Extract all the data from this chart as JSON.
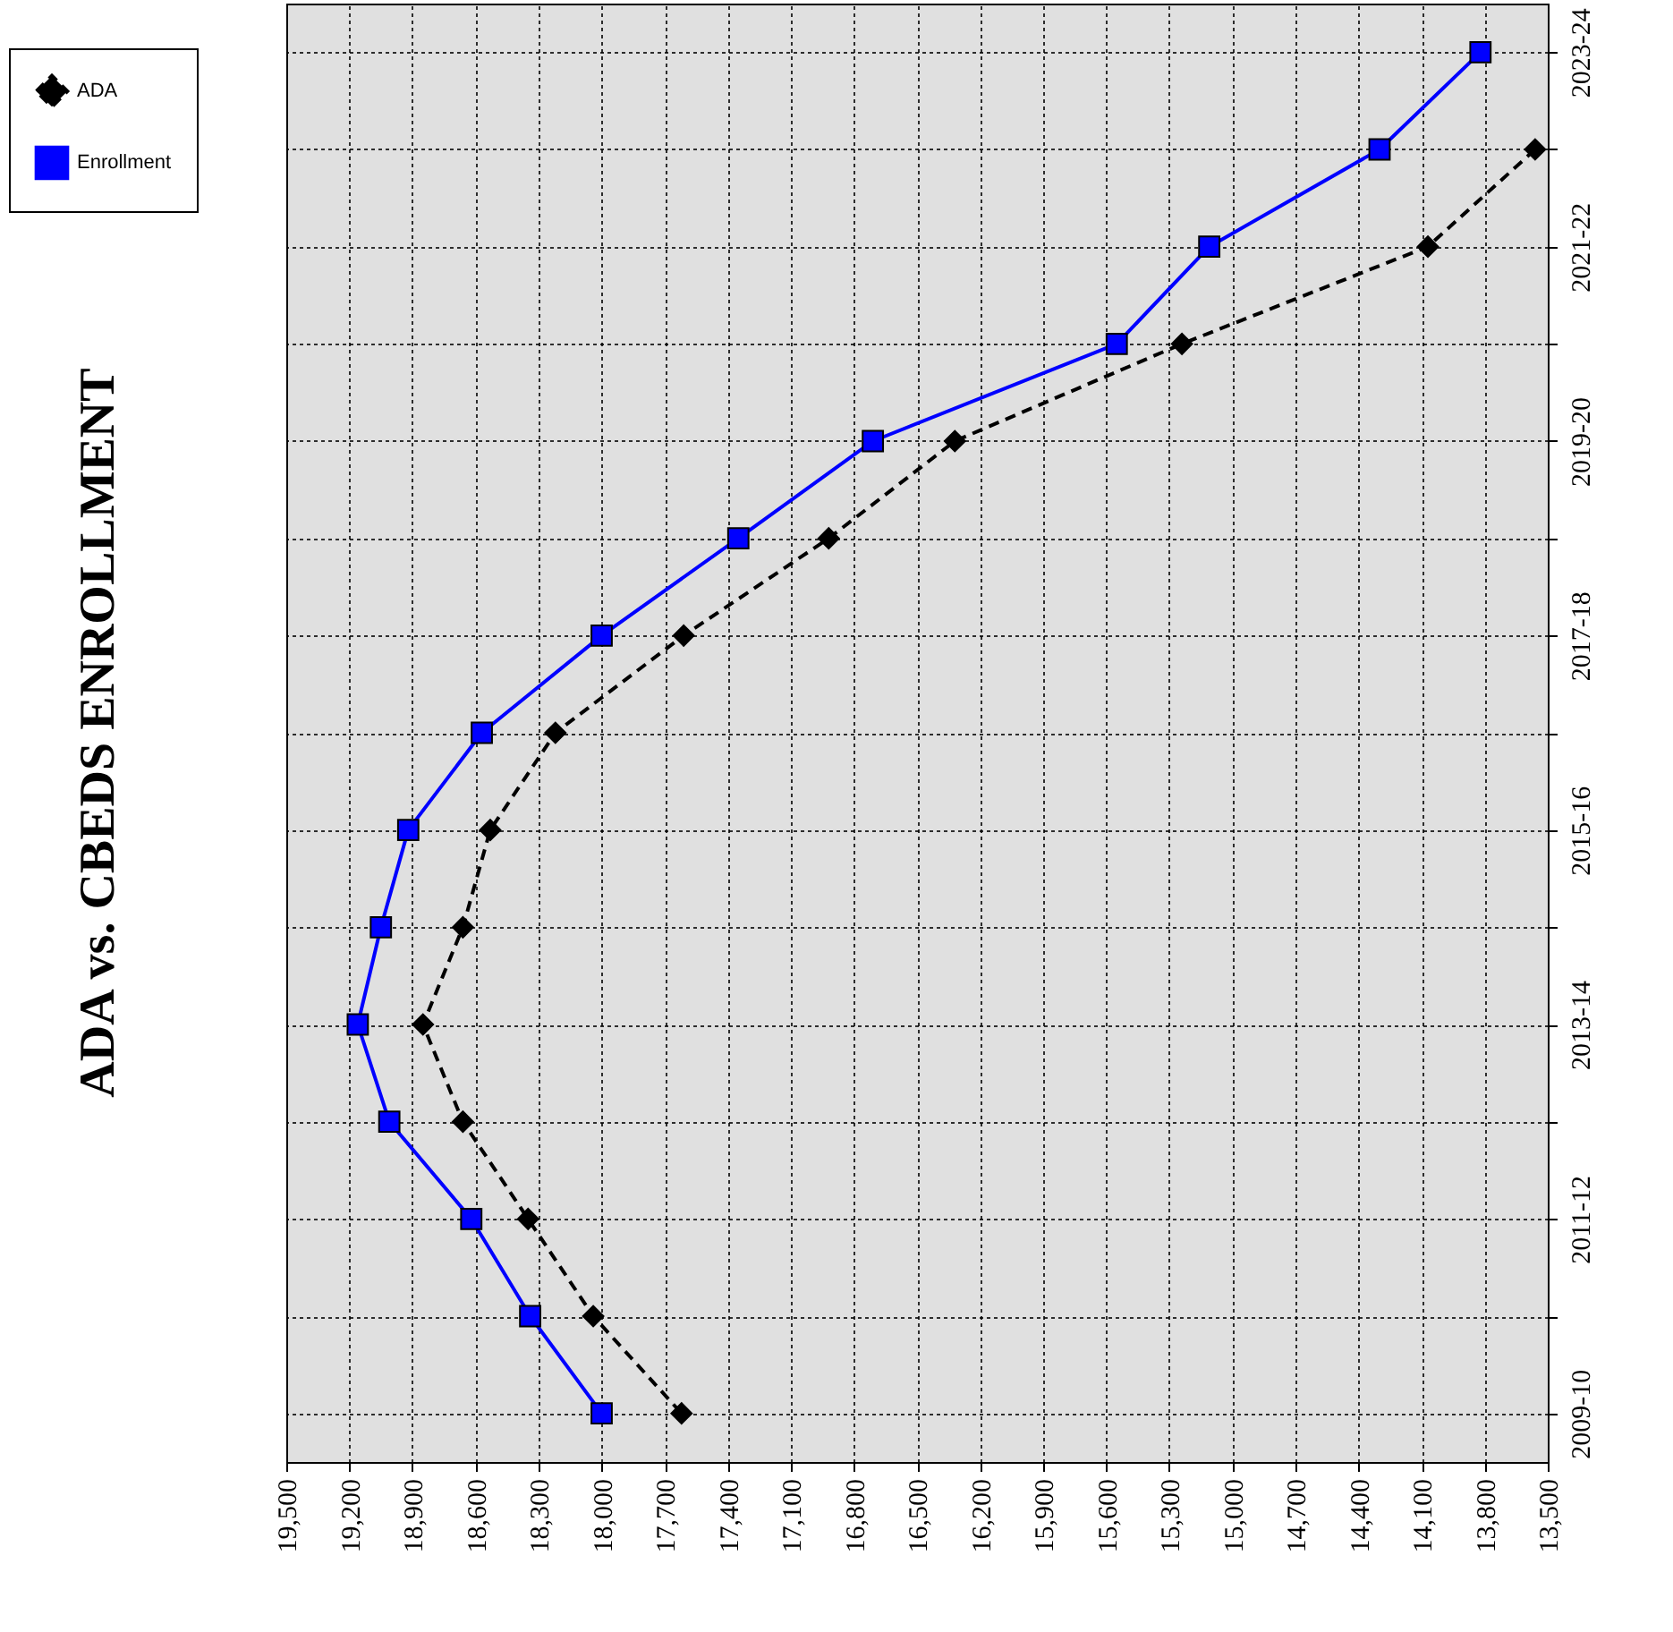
{
  "chart_data": {
    "type": "line",
    "title": "ADA vs. CBEDS ENROLLMENT",
    "orientation": "horizontal",
    "categories": [
      "2023-24",
      null,
      "2021-22",
      null,
      "2019-20",
      null,
      "2017-18",
      null,
      "2015-16",
      null,
      "2013-14",
      null,
      "2011-12",
      null,
      "2009-10"
    ],
    "series": [
      {
        "name": "ADA",
        "color": "#000000",
        "marker": "diamond",
        "line_style": "dashed",
        "values": [
          null,
          13560,
          14070,
          15240,
          16320,
          16920,
          17610,
          18220,
          18530,
          18660,
          18850,
          18660,
          18350,
          18040,
          17620
        ]
      },
      {
        "name": "Enrollment",
        "color": "#0000ff",
        "marker": "square",
        "line_style": "solid",
        "values": [
          13820,
          14300,
          15110,
          15550,
          16710,
          17350,
          18000,
          18570,
          18920,
          19050,
          19160,
          19010,
          18620,
          18340,
          18000
        ]
      }
    ],
    "xlim": [
      19500,
      13500
    ],
    "xticks": [
      {
        "value": 19500,
        "label": "19,500"
      },
      {
        "value": 19200,
        "label": "19,200"
      },
      {
        "value": 18900,
        "label": "18,900"
      },
      {
        "value": 18600,
        "label": "18,600"
      },
      {
        "value": 18300,
        "label": "18,300"
      },
      {
        "value": 18000,
        "label": "18,000"
      },
      {
        "value": 17700,
        "label": "17,700"
      },
      {
        "value": 17400,
        "label": "17,400"
      },
      {
        "value": 17100,
        "label": "17,100"
      },
      {
        "value": 16800,
        "label": "16,800"
      },
      {
        "value": 16500,
        "label": "16,500"
      },
      {
        "value": 16200,
        "label": "16,200"
      },
      {
        "value": 15900,
        "label": "15,900"
      },
      {
        "value": 15600,
        "label": "15,600"
      },
      {
        "value": 15300,
        "label": "15,300"
      },
      {
        "value": 15000,
        "label": "15,000"
      },
      {
        "value": 14700,
        "label": "14,700"
      },
      {
        "value": 14400,
        "label": "14,400"
      },
      {
        "value": 14100,
        "label": "14,100"
      },
      {
        "value": 13800,
        "label": "13,800"
      },
      {
        "value": 13500,
        "label": "13,500"
      }
    ],
    "grid": true,
    "legend": "top left"
  }
}
